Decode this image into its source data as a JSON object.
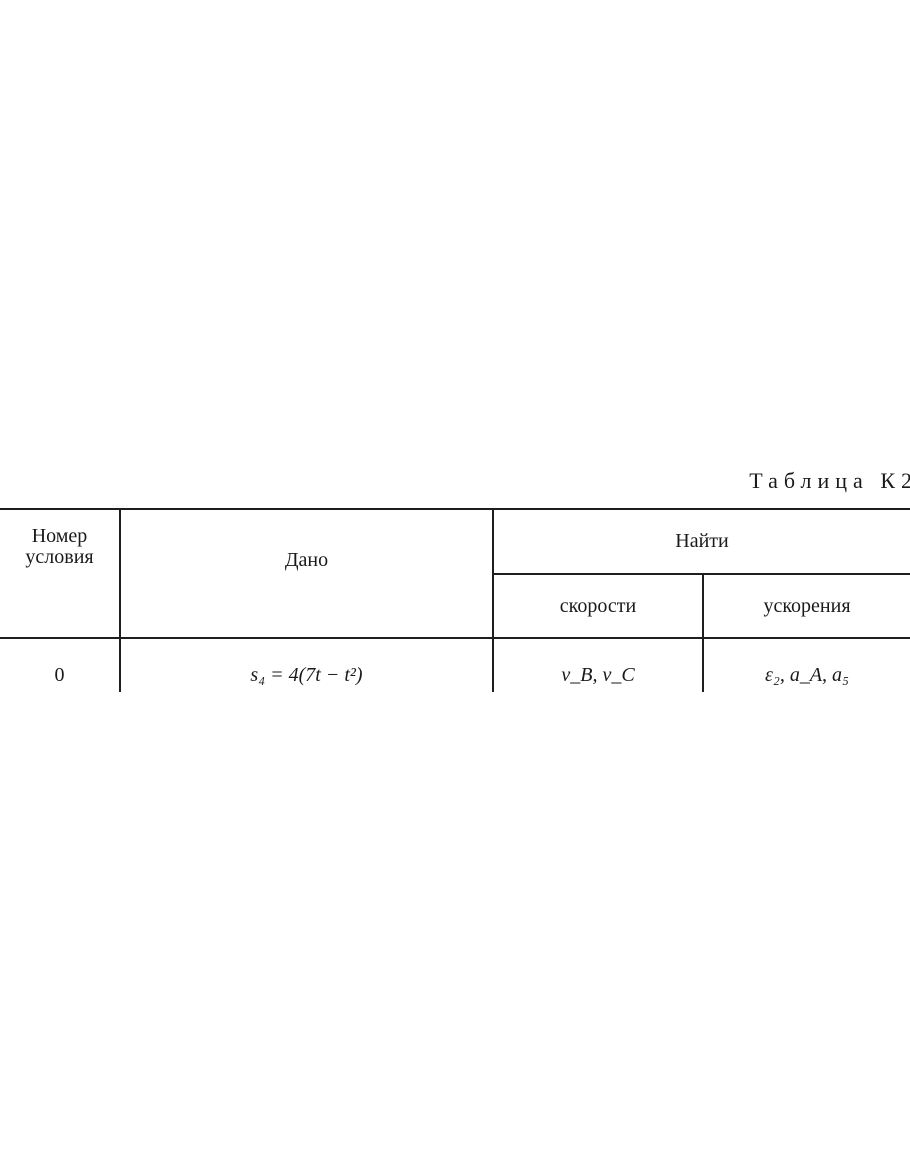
{
  "table_title": "Таблица К2",
  "headers": {
    "number": "Номер условия",
    "given": "Дано",
    "find": "Найти",
    "velocities": "скорости",
    "accelerations": "ускорения"
  },
  "rows": [
    {
      "number": "0",
      "given": "s₄ = 4(7t − t²)",
      "velocities": "v_B, v_C",
      "accelerations": "ε₂, a_A, a₅"
    }
  ]
}
